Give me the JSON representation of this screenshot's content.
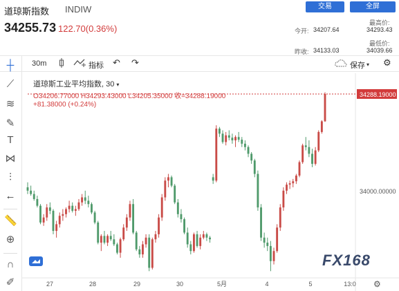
{
  "header": {
    "title": "道琼斯指数",
    "code": "INDIW",
    "trade_button": "交易",
    "all_button": "全屏",
    "price": "34255.73",
    "change": "122.70(0.36%)",
    "stats": [
      {
        "label": "今开:",
        "value": "34207.64"
      },
      {
        "label": "最高价:",
        "value": "34293.43"
      },
      {
        "label": "昨收:",
        "value": "34133.03"
      },
      {
        "label": "最低价:",
        "value": "34039.66"
      }
    ]
  },
  "toolbar": {
    "interval": "30m",
    "indicators_label": "指标",
    "save_label": "保存"
  },
  "legend": {
    "title": "道琼斯工业平均指数, 30",
    "ohlc": "O34206.77000  H34293.43000  L34205.35000  收=34288.19000",
    "change": "+81.38000 (+0.24%)"
  },
  "last_price_label": "34288.19000",
  "watermark": "FX168",
  "colors": {
    "up": "#c94b47",
    "down": "#4f9a6b",
    "accent": "#2f6fd6",
    "price_line": "#d23b3b"
  },
  "chart_data": {
    "type": "candlestick",
    "y_axis_labels": [
      "34288.19000",
      "34000.00000"
    ],
    "x_tick_labels": [
      "27",
      "28",
      "29",
      "30",
      "5月",
      "4",
      "5",
      "13:0"
    ],
    "ylim": [
      33740,
      34350
    ],
    "candles": [
      [
        34010,
        34025,
        33990,
        34000
      ],
      [
        34000,
        34015,
        33985,
        33990
      ],
      [
        33990,
        34000,
        33970,
        33975
      ],
      [
        33975,
        33985,
        33950,
        33955
      ],
      [
        33955,
        33960,
        33900,
        33905
      ],
      [
        33905,
        33930,
        33895,
        33920
      ],
      [
        33920,
        33960,
        33910,
        33950
      ],
      [
        33950,
        33965,
        33930,
        33940
      ],
      [
        33940,
        33945,
        33870,
        33880
      ],
      [
        33880,
        33910,
        33860,
        33900
      ],
      [
        33900,
        33935,
        33890,
        33925
      ],
      [
        33925,
        33945,
        33910,
        33930
      ],
      [
        33930,
        33950,
        33920,
        33945
      ],
      [
        33945,
        33970,
        33935,
        33955
      ],
      [
        33955,
        33965,
        33935,
        33940
      ],
      [
        33940,
        33955,
        33925,
        33945
      ],
      [
        33945,
        33975,
        33940,
        33965
      ],
      [
        33965,
        33990,
        33955,
        33980
      ],
      [
        33980,
        34000,
        33960,
        33970
      ],
      [
        33970,
        33985,
        33950,
        33960
      ],
      [
        33960,
        33965,
        33930,
        33935
      ],
      [
        33935,
        33940,
        33900,
        33905
      ],
      [
        33905,
        33910,
        33840,
        33845
      ],
      [
        33845,
        33870,
        33820,
        33865
      ],
      [
        33865,
        33880,
        33840,
        33845
      ],
      [
        33845,
        33870,
        33835,
        33865
      ],
      [
        33865,
        33880,
        33850,
        33855
      ],
      [
        33855,
        33870,
        33835,
        33840
      ],
      [
        33840,
        33845,
        33810,
        33815
      ],
      [
        33815,
        33860,
        33800,
        33855
      ],
      [
        33855,
        33900,
        33850,
        33890
      ],
      [
        33890,
        33930,
        33880,
        33920
      ],
      [
        33920,
        33970,
        33910,
        33960
      ],
      [
        33960,
        33975,
        33870,
        33875
      ],
      [
        33875,
        33880,
        33820,
        33825
      ],
      [
        33825,
        33835,
        33800,
        33810
      ],
      [
        33810,
        33850,
        33800,
        33840
      ],
      [
        33840,
        33870,
        33830,
        33860
      ],
      [
        33860,
        33870,
        33760,
        33770
      ],
      [
        33770,
        33860,
        33765,
        33855
      ],
      [
        33855,
        33880,
        33845,
        33870
      ],
      [
        33870,
        33930,
        33860,
        33920
      ],
      [
        33920,
        33990,
        33910,
        33980
      ],
      [
        33980,
        34040,
        33970,
        34030
      ],
      [
        34030,
        34050,
        34010,
        34040
      ],
      [
        34040,
        34045,
        34010,
        34015
      ],
      [
        34015,
        34020,
        33960,
        33965
      ],
      [
        33965,
        33975,
        33920,
        33930
      ],
      [
        33930,
        33945,
        33905,
        33915
      ],
      [
        33915,
        33920,
        33870,
        33875
      ],
      [
        33875,
        33890,
        33830,
        33840
      ],
      [
        33840,
        33850,
        33810,
        33820
      ],
      [
        33820,
        33875,
        33815,
        33870
      ],
      [
        33870,
        33880,
        33830,
        33835
      ],
      [
        33835,
        33870,
        33825,
        33860
      ],
      [
        33860,
        33880,
        33855,
        33870
      ],
      [
        33870,
        33875,
        33850,
        33860
      ],
      [
        33860,
        33865,
        33845,
        33855
      ],
      [
        34040,
        34050,
        34020,
        34030
      ],
      [
        34030,
        34195,
        34025,
        34185
      ],
      [
        34185,
        34190,
        34160,
        34170
      ],
      [
        34170,
        34180,
        34140,
        34145
      ],
      [
        34145,
        34175,
        34135,
        34165
      ],
      [
        34165,
        34180,
        34150,
        34158
      ],
      [
        34158,
        34170,
        34140,
        34150
      ],
      [
        34150,
        34165,
        34130,
        34160
      ],
      [
        34160,
        34175,
        34145,
        34152
      ],
      [
        34152,
        34160,
        34130,
        34140
      ],
      [
        34140,
        34150,
        34120,
        34130
      ],
      [
        34130,
        34135,
        34100,
        34110
      ],
      [
        34110,
        34115,
        34080,
        34090
      ],
      [
        34090,
        34095,
        34040,
        34050
      ],
      [
        34050,
        34060,
        33940,
        33950
      ],
      [
        33950,
        33960,
        33850,
        33860
      ],
      [
        33860,
        33875,
        33830,
        33845
      ],
      [
        33845,
        33860,
        33820,
        33835
      ],
      [
        33835,
        33850,
        33760,
        33790
      ],
      [
        33790,
        33830,
        33780,
        33820
      ],
      [
        33820,
        33900,
        33815,
        33890
      ],
      [
        33890,
        33960,
        33880,
        33950
      ],
      [
        33950,
        34010,
        33940,
        34000
      ],
      [
        34000,
        34025,
        33990,
        34018
      ],
      [
        34018,
        34030,
        34005,
        34022
      ],
      [
        34022,
        34035,
        34010,
        34028
      ],
      [
        34028,
        34050,
        34020,
        34045
      ],
      [
        34045,
        34090,
        34040,
        34085
      ],
      [
        34085,
        34140,
        34080,
        34135
      ],
      [
        34135,
        34160,
        34120,
        34130
      ],
      [
        34130,
        34150,
        34100,
        34110
      ],
      [
        34110,
        34125,
        34070,
        34080
      ],
      [
        34080,
        34130,
        34075,
        34120
      ],
      [
        34120,
        34180,
        34115,
        34175
      ],
      [
        34175,
        34210,
        34170,
        34206.77
      ],
      [
        34206.77,
        34293.43,
        34205.35,
        34288.19
      ]
    ]
  }
}
